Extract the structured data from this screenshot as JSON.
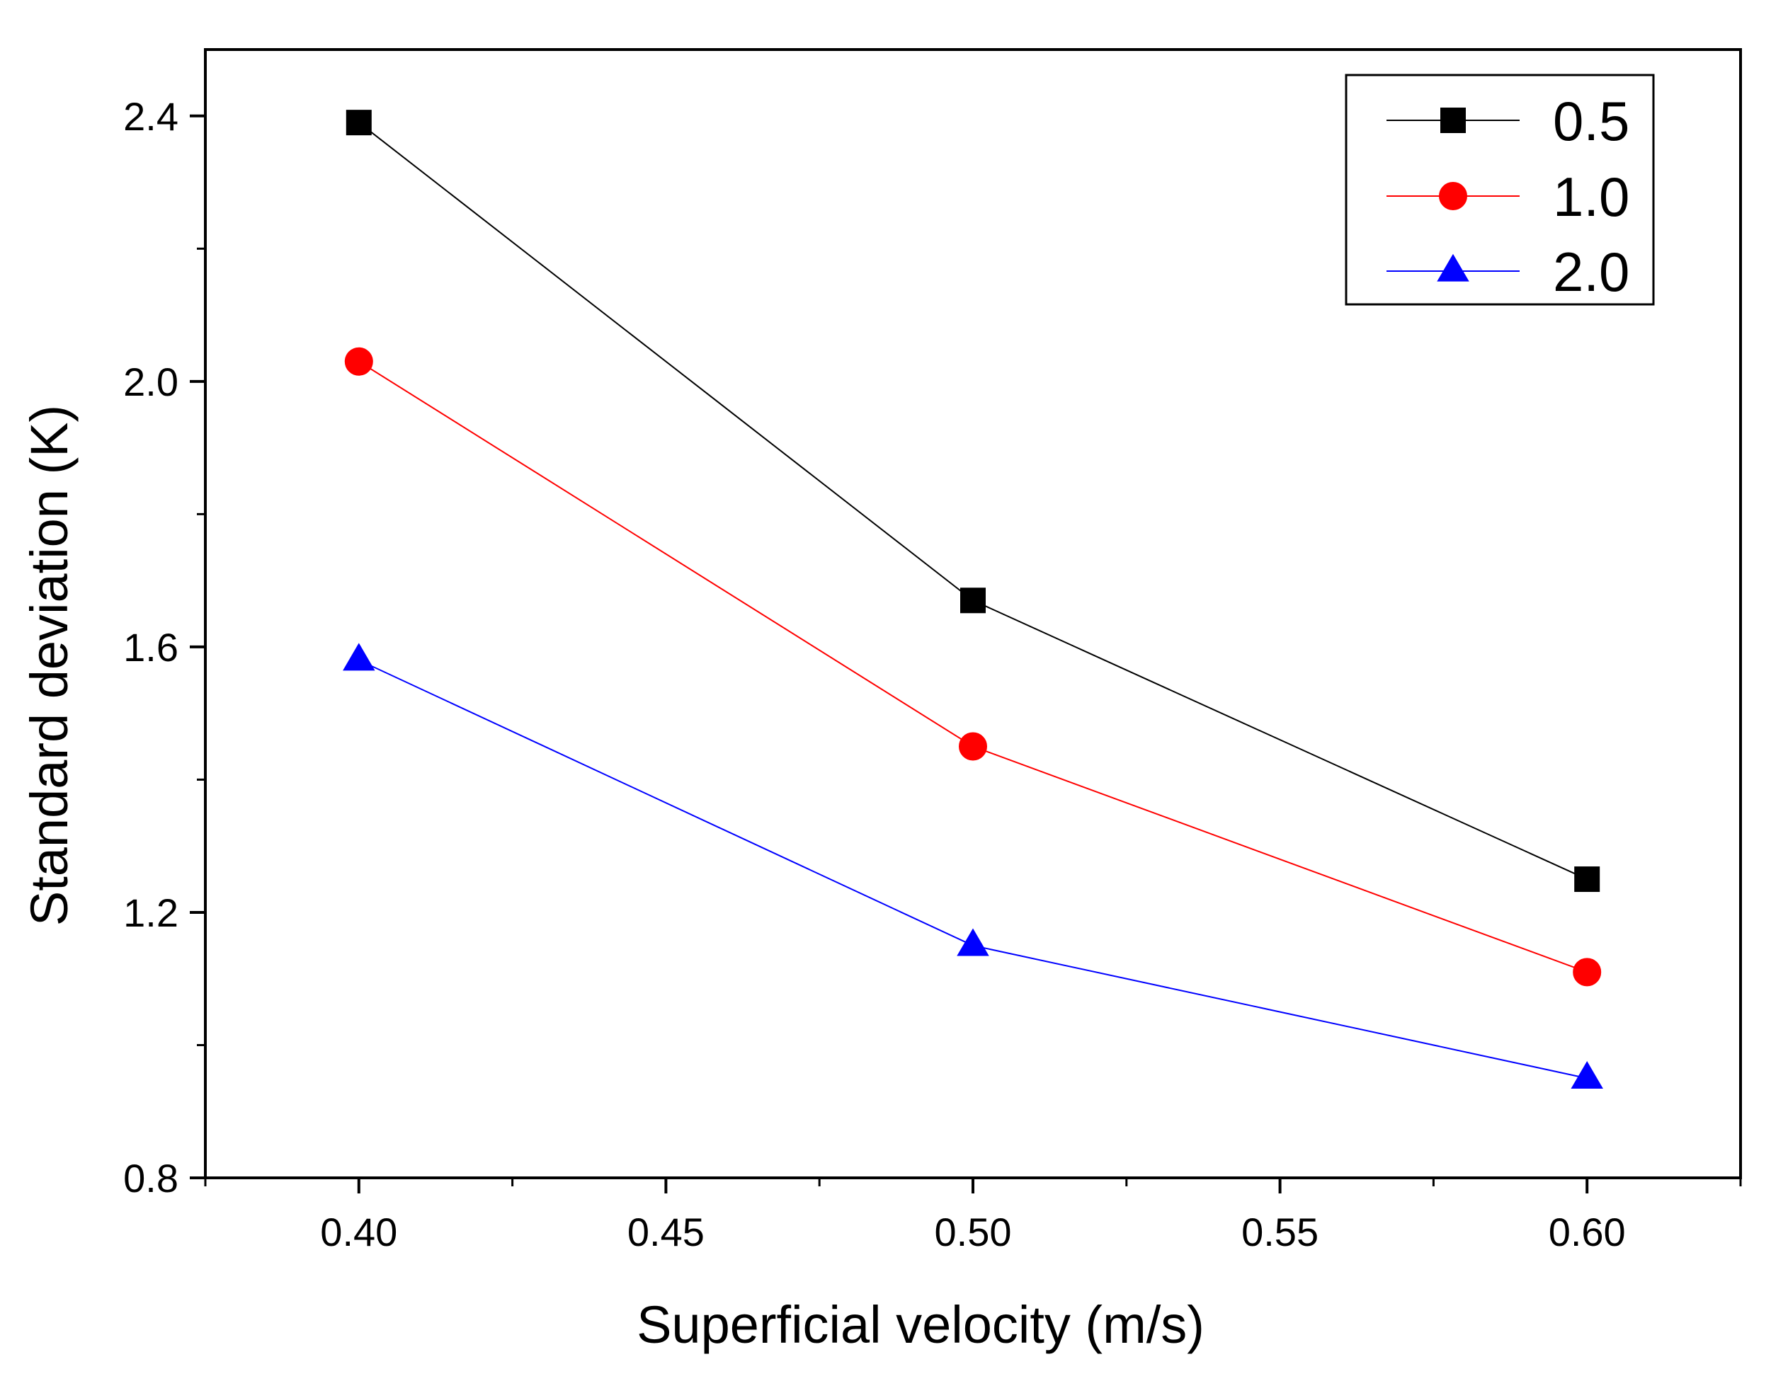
{
  "chart_data": {
    "type": "line",
    "title": "",
    "xlabel": "Superficial velocity (m/s)",
    "ylabel": "Standard deviation (K)",
    "xlim": [
      0.375,
      0.625
    ],
    "ylim": [
      0.8,
      2.5
    ],
    "x_ticks": [
      {
        "value": 0.4,
        "label": "0.40"
      },
      {
        "value": 0.45,
        "label": "0.45"
      },
      {
        "value": 0.5,
        "label": "0.50"
      },
      {
        "value": 0.55,
        "label": "0.55"
      },
      {
        "value": 0.6,
        "label": "0.60"
      }
    ],
    "y_ticks": [
      {
        "value": 0.8,
        "label": "0.8"
      },
      {
        "value": 1.2,
        "label": "1.2"
      },
      {
        "value": 1.6,
        "label": "1.6"
      },
      {
        "value": 2.0,
        "label": "2.0"
      },
      {
        "value": 2.4,
        "label": "2.4"
      }
    ],
    "grid": false,
    "legend_position": "top-right",
    "x": [
      0.4,
      0.5,
      0.6
    ],
    "series": [
      {
        "name": "0.5",
        "marker": "square",
        "color": "#000000",
        "values": [
          2.39,
          1.67,
          1.25
        ]
      },
      {
        "name": "1.0",
        "marker": "circle",
        "color": "#ff0000",
        "values": [
          2.03,
          1.45,
          1.11
        ]
      },
      {
        "name": "2.0",
        "marker": "triangle",
        "color": "#0000ff",
        "values": [
          1.58,
          1.15,
          0.95
        ]
      }
    ]
  }
}
